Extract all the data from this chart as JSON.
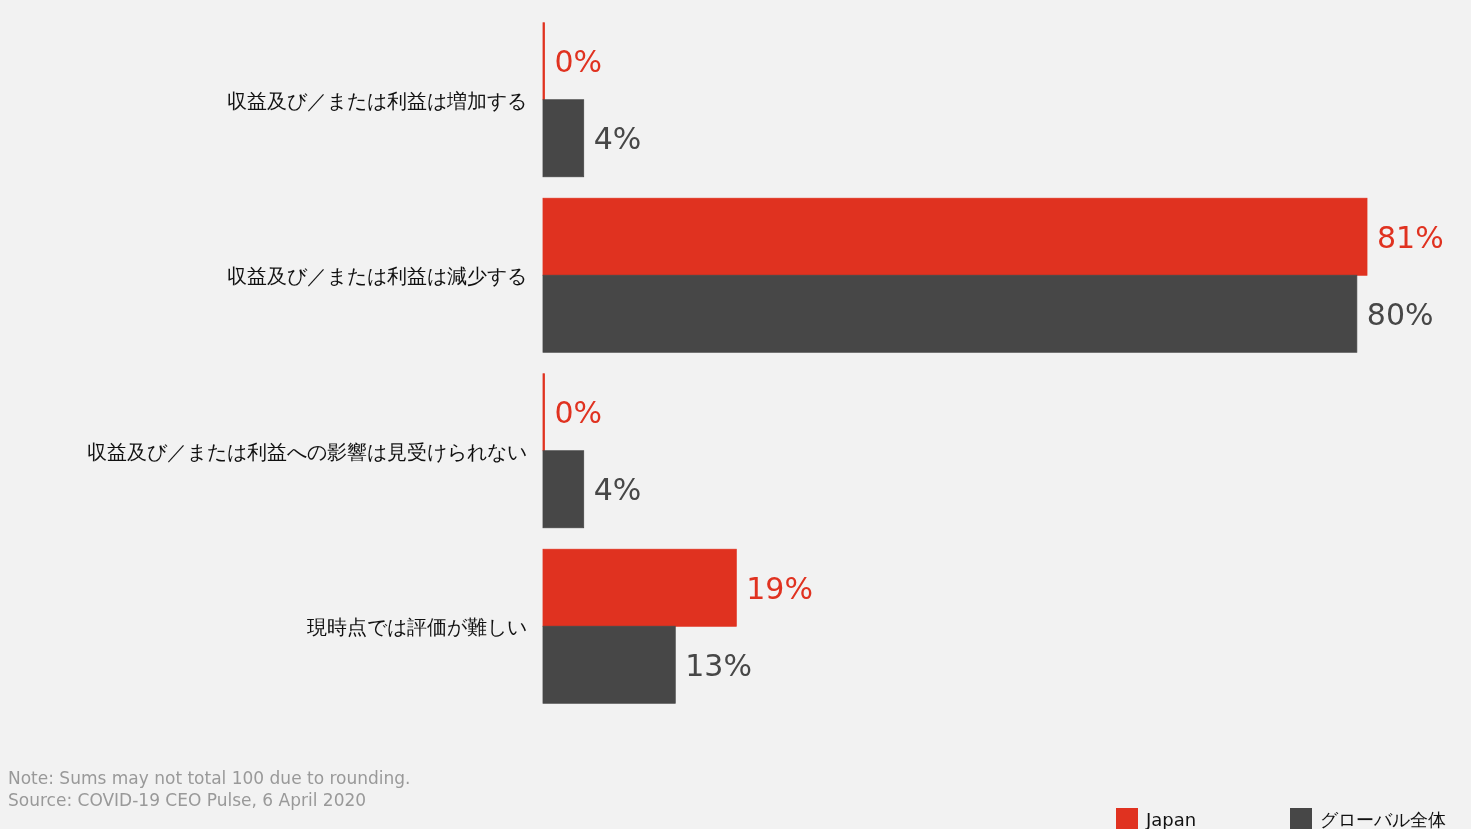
{
  "chart_data": {
    "type": "bar",
    "orientation": "horizontal",
    "categories": [
      "収益及び／または利益は増加する",
      "収益及び／または利益は減少する",
      "収益及び／または利益への影響は見受けられない",
      "現時点では評価が難しい"
    ],
    "series": [
      {
        "name": "Japan",
        "color": "#e03220",
        "values": [
          0,
          81,
          0,
          19
        ],
        "value_labels": [
          "0%",
          "81%",
          "0%",
          "19%"
        ]
      },
      {
        "name": "グローバル全体",
        "color": "#474747",
        "values": [
          4,
          80,
          4,
          13
        ],
        "value_labels": [
          "4%",
          "80%",
          "4%",
          "13%"
        ]
      }
    ],
    "legend": "bottom right",
    "annotations": [
      "Note: Sums may not total 100 due to rounding.",
      "Source: COVID-19 CEO Pulse, 6 April 2020"
    ]
  }
}
